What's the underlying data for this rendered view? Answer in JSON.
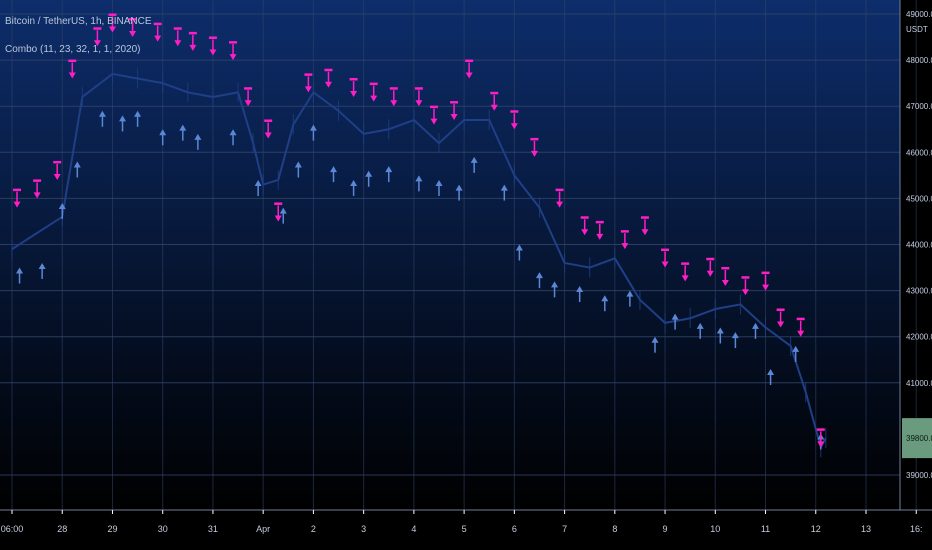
{
  "window": {
    "symbol_line": "Bitcoin / TetherUS, 1h, BINANCE",
    "indicator_line": "Combo (11, 23, 32, 1, 1, 2020)"
  },
  "colors": {
    "bg_top": "#0d2d6b",
    "bg_bottom": "#000000",
    "candle": "#1f3f86",
    "buy_arrow": "#5b87d6",
    "sell_arrow": "#ff1dc6",
    "label_box": "#6b9b7f",
    "axis_text": "#c5cde0",
    "grid": "#34466d",
    "tick_mark": "#ffffff"
  },
  "chart_data": {
    "type": "line",
    "title": "Bitcoin / TetherUS, 1h, BINANCE",
    "xlabel": "",
    "ylabel": "USDT",
    "ylim": [
      38500,
      49000
    ],
    "grid": true,
    "y_ticks": [
      {
        "value": 39000,
        "label": "39000.00"
      },
      {
        "value": 41000,
        "label": "41000.00"
      },
      {
        "value": 42000,
        "label": "42000.00"
      },
      {
        "value": 43000,
        "label": "43000.00"
      },
      {
        "value": 44000,
        "label": "44000.00"
      },
      {
        "value": 45000,
        "label": "45000.00"
      },
      {
        "value": 46000,
        "label": "46000.00"
      },
      {
        "value": 47000,
        "label": "47000.00"
      },
      {
        "value": 48000,
        "label": "48000.00"
      },
      {
        "value": 49000,
        "label": "49000.00"
      }
    ],
    "price_axis_unit": "USDT",
    "current_price": {
      "value": 39800,
      "label": "39800.00"
    },
    "x_ticks": [
      "06:00",
      "28",
      "29",
      "30",
      "31",
      "Apr",
      "2",
      "3",
      "4",
      "5",
      "6",
      "7",
      "8",
      "9",
      "10",
      "11",
      "12",
      "13",
      "16:"
    ],
    "close_series": [
      {
        "x": 0,
        "y": 43900
      },
      {
        "x": 1,
        "y": 44600
      },
      {
        "x": 1.4,
        "y": 47200
      },
      {
        "x": 2,
        "y": 47700
      },
      {
        "x": 2.5,
        "y": 47600
      },
      {
        "x": 3,
        "y": 47500
      },
      {
        "x": 3.5,
        "y": 47300
      },
      {
        "x": 4,
        "y": 47200
      },
      {
        "x": 4.5,
        "y": 47300
      },
      {
        "x": 4.8,
        "y": 46200
      },
      {
        "x": 5,
        "y": 45300
      },
      {
        "x": 5.3,
        "y": 45400
      },
      {
        "x": 5.6,
        "y": 46600
      },
      {
        "x": 6,
        "y": 47300
      },
      {
        "x": 6.5,
        "y": 46900
      },
      {
        "x": 7,
        "y": 46400
      },
      {
        "x": 7.5,
        "y": 46500
      },
      {
        "x": 8,
        "y": 46700
      },
      {
        "x": 8.5,
        "y": 46200
      },
      {
        "x": 9,
        "y": 46700
      },
      {
        "x": 9.5,
        "y": 46700
      },
      {
        "x": 10,
        "y": 45500
      },
      {
        "x": 10.5,
        "y": 44800
      },
      {
        "x": 11,
        "y": 43600
      },
      {
        "x": 11.5,
        "y": 43500
      },
      {
        "x": 12,
        "y": 43700
      },
      {
        "x": 12.5,
        "y": 42800
      },
      {
        "x": 13,
        "y": 42300
      },
      {
        "x": 13.5,
        "y": 42400
      },
      {
        "x": 14,
        "y": 42600
      },
      {
        "x": 14.5,
        "y": 42700
      },
      {
        "x": 15,
        "y": 42200
      },
      {
        "x": 15.5,
        "y": 41800
      },
      {
        "x": 15.8,
        "y": 40800
      },
      {
        "x": 16.1,
        "y": 39600
      },
      {
        "x": 16.2,
        "y": 39800
      }
    ],
    "buy_signals": [
      {
        "x": 0.15,
        "y": 43500
      },
      {
        "x": 0.6,
        "y": 43600
      },
      {
        "x": 1,
        "y": 44900
      },
      {
        "x": 1.3,
        "y": 45800
      },
      {
        "x": 1.8,
        "y": 46900
      },
      {
        "x": 2.2,
        "y": 46800
      },
      {
        "x": 2.5,
        "y": 46900
      },
      {
        "x": 3,
        "y": 46500
      },
      {
        "x": 3.4,
        "y": 46600
      },
      {
        "x": 3.7,
        "y": 46400
      },
      {
        "x": 4.4,
        "y": 46500
      },
      {
        "x": 4.9,
        "y": 45400
      },
      {
        "x": 5.4,
        "y": 44800
      },
      {
        "x": 5.7,
        "y": 45800
      },
      {
        "x": 6,
        "y": 46600
      },
      {
        "x": 6.4,
        "y": 45700
      },
      {
        "x": 6.8,
        "y": 45400
      },
      {
        "x": 7.1,
        "y": 45600
      },
      {
        "x": 7.5,
        "y": 45700
      },
      {
        "x": 8.1,
        "y": 45500
      },
      {
        "x": 8.5,
        "y": 45400
      },
      {
        "x": 8.9,
        "y": 45300
      },
      {
        "x": 9.2,
        "y": 45900
      },
      {
        "x": 9.8,
        "y": 45300
      },
      {
        "x": 10.1,
        "y": 44000
      },
      {
        "x": 10.5,
        "y": 43400
      },
      {
        "x": 10.8,
        "y": 43200
      },
      {
        "x": 11.3,
        "y": 43100
      },
      {
        "x": 11.8,
        "y": 42900
      },
      {
        "x": 12.3,
        "y": 43000
      },
      {
        "x": 12.8,
        "y": 42000
      },
      {
        "x": 13.2,
        "y": 42500
      },
      {
        "x": 13.7,
        "y": 42300
      },
      {
        "x": 14.1,
        "y": 42200
      },
      {
        "x": 14.4,
        "y": 42100
      },
      {
        "x": 14.8,
        "y": 42300
      },
      {
        "x": 15.1,
        "y": 41300
      },
      {
        "x": 15.6,
        "y": 41800
      },
      {
        "x": 16.1,
        "y": 39900
      }
    ],
    "sell_signals": [
      {
        "x": 0.1,
        "y": 44800
      },
      {
        "x": 0.5,
        "y": 45000
      },
      {
        "x": 0.9,
        "y": 45400
      },
      {
        "x": 1.2,
        "y": 47600
      },
      {
        "x": 1.7,
        "y": 48300
      },
      {
        "x": 2,
        "y": 48600
      },
      {
        "x": 2.4,
        "y": 48500
      },
      {
        "x": 2.9,
        "y": 48400
      },
      {
        "x": 3.3,
        "y": 48300
      },
      {
        "x": 3.6,
        "y": 48200
      },
      {
        "x": 4,
        "y": 48100
      },
      {
        "x": 4.4,
        "y": 48000
      },
      {
        "x": 4.7,
        "y": 47000
      },
      {
        "x": 5.1,
        "y": 46300
      },
      {
        "x": 5.3,
        "y": 44500
      },
      {
        "x": 5.9,
        "y": 47300
      },
      {
        "x": 6.3,
        "y": 47400
      },
      {
        "x": 6.8,
        "y": 47200
      },
      {
        "x": 7.2,
        "y": 47100
      },
      {
        "x": 7.6,
        "y": 47000
      },
      {
        "x": 8.1,
        "y": 47000
      },
      {
        "x": 8.4,
        "y": 46600
      },
      {
        "x": 8.8,
        "y": 46700
      },
      {
        "x": 9.1,
        "y": 47600
      },
      {
        "x": 9.6,
        "y": 46900
      },
      {
        "x": 10,
        "y": 46500
      },
      {
        "x": 10.4,
        "y": 45900
      },
      {
        "x": 10.9,
        "y": 44800
      },
      {
        "x": 11.4,
        "y": 44200
      },
      {
        "x": 11.7,
        "y": 44100
      },
      {
        "x": 12.2,
        "y": 43900
      },
      {
        "x": 12.6,
        "y": 44200
      },
      {
        "x": 13,
        "y": 43500
      },
      {
        "x": 13.4,
        "y": 43200
      },
      {
        "x": 13.9,
        "y": 43300
      },
      {
        "x": 14.2,
        "y": 43100
      },
      {
        "x": 14.6,
        "y": 42900
      },
      {
        "x": 15,
        "y": 43000
      },
      {
        "x": 15.3,
        "y": 42200
      },
      {
        "x": 15.7,
        "y": 42000
      },
      {
        "x": 16.1,
        "y": 39600
      }
    ]
  }
}
